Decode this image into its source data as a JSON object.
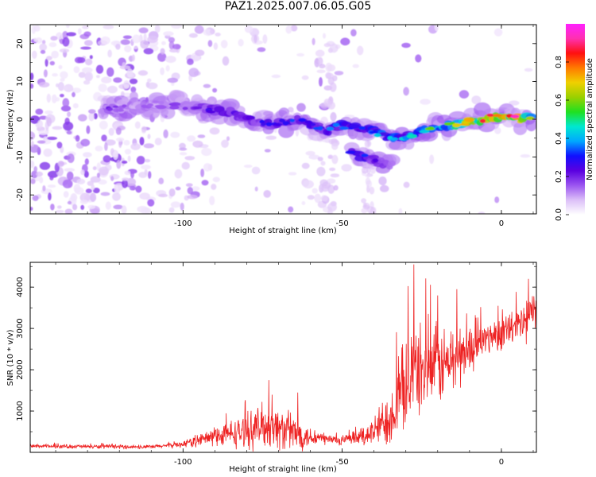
{
  "title": "PAZ1.2025.007.06.05.G05",
  "chart_data": [
    {
      "type": "heatmap",
      "xlabel": "Height of straight line (km)",
      "ylabel": "Frequency (Hz)",
      "xlim": [
        -148,
        11
      ],
      "ylim": [
        -25,
        25
      ],
      "x_ticks": [
        -100,
        -50,
        0
      ],
      "y_ticks": [
        -20,
        -10,
        0,
        10,
        20
      ],
      "colorbar": {
        "label": "Normalized spectral amplitude",
        "range": [
          0,
          1
        ],
        "ticks": [
          "0.0",
          "0.2",
          "0.4",
          "0.6",
          "0.8"
        ],
        "colors": [
          "#ffffff",
          "#dcbff8",
          "#9b55f0",
          "#5a00e0",
          "#1010ff",
          "#00a8ff",
          "#00e8d0",
          "#20e020",
          "#9ad000",
          "#f0d000",
          "#ff7a00",
          "#ff1010",
          "#ff30b0",
          "#ff20ff"
        ]
      },
      "ridge": [
        {
          "x": -125,
          "f": 2.5,
          "a": 0.2
        },
        {
          "x": -115,
          "f": 3.5,
          "a": 0.15
        },
        {
          "x": -105,
          "f": 4.0,
          "a": 0.15
        },
        {
          "x": -97,
          "f": 3.5,
          "a": 0.2
        },
        {
          "x": -90,
          "f": 2.5,
          "a": 0.25
        },
        {
          "x": -85,
          "f": 2.0,
          "a": 0.3
        },
        {
          "x": -80,
          "f": 0.0,
          "a": 0.3
        },
        {
          "x": -75,
          "f": -1.5,
          "a": 0.25
        },
        {
          "x": -70,
          "f": -1.0,
          "a": 0.3
        },
        {
          "x": -65,
          "f": 0.0,
          "a": 0.3
        },
        {
          "x": -60,
          "f": -1.5,
          "a": 0.3
        },
        {
          "x": -55,
          "f": -3.0,
          "a": 0.3
        },
        {
          "x": -50,
          "f": -1.5,
          "a": 0.35
        },
        {
          "x": -45,
          "f": -2.0,
          "a": 0.3
        },
        {
          "x": -40,
          "f": -3.0,
          "a": 0.35
        },
        {
          "x": -35,
          "f": -5.0,
          "a": 0.45
        },
        {
          "x": -30,
          "f": -4.5,
          "a": 0.4
        },
        {
          "x": -25,
          "f": -3.0,
          "a": 0.5
        },
        {
          "x": -20,
          "f": -2.0,
          "a": 0.55
        },
        {
          "x": -15,
          "f": -1.5,
          "a": 0.55
        },
        {
          "x": -10,
          "f": -0.5,
          "a": 0.8
        },
        {
          "x": -5,
          "f": 0.0,
          "a": 0.75
        },
        {
          "x": 0,
          "f": 1.0,
          "a": 0.9
        },
        {
          "x": 5,
          "f": 0.0,
          "a": 0.85
        },
        {
          "x": 10,
          "f": 0.5,
          "a": 0.6
        }
      ],
      "branch": [
        {
          "x": -47,
          "f": -9.0,
          "a": 0.3
        },
        {
          "x": -42,
          "f": -10.0,
          "a": 0.3
        },
        {
          "x": -38,
          "f": -11.5,
          "a": 0.25
        },
        {
          "x": -34,
          "f": -12.5,
          "a": 0.15
        }
      ]
    },
    {
      "type": "line",
      "xlabel": "Height of straight line (km)",
      "ylabel": "SNR (10 * v/v)",
      "xlim": [
        -148,
        11
      ],
      "ylim": [
        0,
        4600
      ],
      "x_ticks": [
        -100,
        -50,
        0
      ],
      "y_ticks": [
        1000,
        2000,
        3000,
        4000
      ],
      "color": "#ee2222",
      "envelope": [
        {
          "x": -148,
          "base": 150,
          "amp": 60
        },
        {
          "x": -110,
          "base": 130,
          "amp": 60
        },
        {
          "x": -100,
          "base": 200,
          "amp": 100
        },
        {
          "x": -92,
          "base": 350,
          "amp": 250
        },
        {
          "x": -85,
          "base": 450,
          "amp": 400
        },
        {
          "x": -80,
          "base": 500,
          "amp": 500
        },
        {
          "x": -75,
          "base": 650,
          "amp": 650
        },
        {
          "x": -70,
          "base": 600,
          "amp": 650
        },
        {
          "x": -65,
          "base": 450,
          "amp": 550
        },
        {
          "x": -60,
          "base": 380,
          "amp": 300
        },
        {
          "x": -55,
          "base": 320,
          "amp": 180
        },
        {
          "x": -50,
          "base": 280,
          "amp": 150
        },
        {
          "x": -45,
          "base": 350,
          "amp": 250
        },
        {
          "x": -40,
          "base": 500,
          "amp": 450
        },
        {
          "x": -35,
          "base": 900,
          "amp": 900
        },
        {
          "x": -32,
          "base": 1300,
          "amp": 1100
        },
        {
          "x": -28,
          "base": 2000,
          "amp": 1500
        },
        {
          "x": -25,
          "base": 2000,
          "amp": 1300
        },
        {
          "x": -20,
          "base": 2100,
          "amp": 1200
        },
        {
          "x": -15,
          "base": 2200,
          "amp": 1100
        },
        {
          "x": -10,
          "base": 2500,
          "amp": 700
        },
        {
          "x": -5,
          "base": 2750,
          "amp": 500
        },
        {
          "x": 0,
          "base": 2900,
          "amp": 500
        },
        {
          "x": 5,
          "base": 3000,
          "amp": 600
        },
        {
          "x": 8,
          "base": 3200,
          "amp": 800
        },
        {
          "x": 11,
          "base": 3500,
          "amp": 500
        }
      ],
      "peaks": [
        {
          "x": -27.5,
          "y": 4550
        },
        {
          "x": 8.5,
          "y": 4200
        },
        {
          "x": -14,
          "y": 3950
        },
        {
          "x": -20,
          "y": 3800
        },
        {
          "x": -73,
          "y": 1750
        },
        {
          "x": -64,
          "y": 1450
        },
        {
          "x": -23,
          "y": 3350
        },
        {
          "x": -1,
          "y": 3550
        }
      ]
    }
  ]
}
